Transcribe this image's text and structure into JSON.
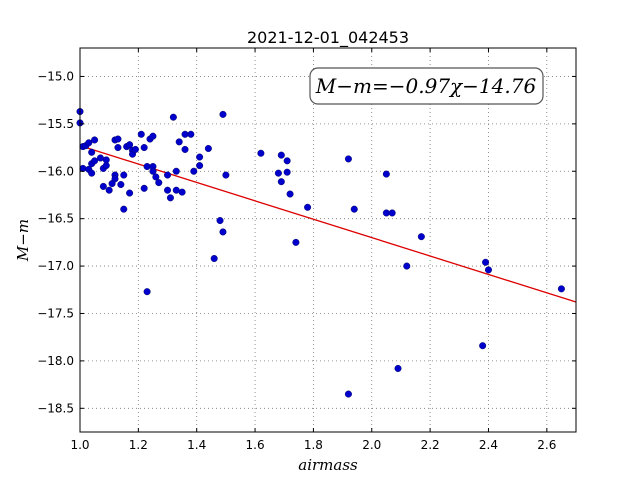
{
  "chart_data": {
    "type": "scatter",
    "title": "2021-12-01_042453",
    "xlabel": "airmass",
    "ylabel": "M−m",
    "xlim": [
      1.0,
      2.7
    ],
    "ylim": [
      -18.75,
      -14.7
    ],
    "y_inverted": true,
    "grid": true,
    "x_ticks": [
      "1.0",
      "1.2",
      "1.4",
      "1.6",
      "1.8",
      "2.0",
      "2.2",
      "2.4",
      "2.6"
    ],
    "x_tick_values": [
      1.0,
      1.2,
      1.4,
      1.6,
      1.8,
      2.0,
      2.2,
      2.4,
      2.6
    ],
    "y_ticks": [
      "−15.0",
      "−15.5",
      "−16.0",
      "−16.5",
      "−17.0",
      "−17.5",
      "−18.0",
      "−18.5"
    ],
    "y_tick_values": [
      -15.0,
      -15.5,
      -16.0,
      -16.5,
      -17.0,
      -17.5,
      -18.0,
      -18.5
    ],
    "marker_color": "#0000cc",
    "fit_color": "#dd0000",
    "annotation": "M−m=−0.97χ−14.76",
    "fit": {
      "slope": -0.97,
      "intercept": -14.76,
      "x_range": [
        1.02,
        2.7
      ]
    },
    "points": [
      [
        1.0,
        -15.37
      ],
      [
        1.0,
        -15.49
      ],
      [
        1.01,
        -15.74
      ],
      [
        1.01,
        -15.97
      ],
      [
        1.02,
        -15.73
      ],
      [
        1.03,
        -15.98
      ],
      [
        1.03,
        -15.7
      ],
      [
        1.04,
        -15.8
      ],
      [
        1.04,
        -16.02
      ],
      [
        1.04,
        -15.92
      ],
      [
        1.05,
        -15.67
      ],
      [
        1.05,
        -15.89
      ],
      [
        1.07,
        -15.86
      ],
      [
        1.08,
        -15.97
      ],
      [
        1.08,
        -16.16
      ],
      [
        1.09,
        -15.94
      ],
      [
        1.09,
        -15.88
      ],
      [
        1.1,
        -16.2
      ],
      [
        1.11,
        -16.13
      ],
      [
        1.12,
        -16.04
      ],
      [
        1.12,
        -16.08
      ],
      [
        1.12,
        -15.67
      ],
      [
        1.13,
        -15.75
      ],
      [
        1.13,
        -15.66
      ],
      [
        1.14,
        -16.14
      ],
      [
        1.15,
        -16.4
      ],
      [
        1.15,
        -16.04
      ],
      [
        1.16,
        -15.74
      ],
      [
        1.17,
        -16.23
      ],
      [
        1.17,
        -15.72
      ],
      [
        1.18,
        -15.78
      ],
      [
        1.18,
        -15.82
      ],
      [
        1.19,
        -15.77
      ],
      [
        1.21,
        -15.61
      ],
      [
        1.22,
        -16.18
      ],
      [
        1.22,
        -15.75
      ],
      [
        1.23,
        -15.95
      ],
      [
        1.23,
        -17.27
      ],
      [
        1.24,
        -15.66
      ],
      [
        1.25,
        -15.63
      ],
      [
        1.25,
        -15.95
      ],
      [
        1.25,
        -16.0
      ],
      [
        1.26,
        -16.06
      ],
      [
        1.27,
        -16.12
      ],
      [
        1.3,
        -16.04
      ],
      [
        1.3,
        -16.2
      ],
      [
        1.31,
        -16.28
      ],
      [
        1.32,
        -15.43
      ],
      [
        1.33,
        -16.0
      ],
      [
        1.33,
        -16.2
      ],
      [
        1.34,
        -15.69
      ],
      [
        1.35,
        -16.22
      ],
      [
        1.36,
        -15.77
      ],
      [
        1.36,
        -15.61
      ],
      [
        1.38,
        -15.61
      ],
      [
        1.39,
        -16.0
      ],
      [
        1.41,
        -15.94
      ],
      [
        1.41,
        -15.85
      ],
      [
        1.44,
        -15.76
      ],
      [
        1.46,
        -16.92
      ],
      [
        1.48,
        -16.52
      ],
      [
        1.49,
        -16.64
      ],
      [
        1.49,
        -15.4
      ],
      [
        1.5,
        -16.04
      ],
      [
        1.62,
        -15.81
      ],
      [
        1.68,
        -16.02
      ],
      [
        1.69,
        -16.11
      ],
      [
        1.69,
        -15.83
      ],
      [
        1.71,
        -16.01
      ],
      [
        1.71,
        -15.89
      ],
      [
        1.72,
        -16.24
      ],
      [
        1.74,
        -16.75
      ],
      [
        1.78,
        -16.38
      ],
      [
        1.92,
        -18.35
      ],
      [
        1.92,
        -15.87
      ],
      [
        1.94,
        -16.4
      ],
      [
        2.05,
        -16.03
      ],
      [
        2.05,
        -16.44
      ],
      [
        2.07,
        -16.44
      ],
      [
        2.09,
        -18.08
      ],
      [
        2.12,
        -17.0
      ],
      [
        2.17,
        -16.69
      ],
      [
        2.38,
        -17.84
      ],
      [
        2.39,
        -16.96
      ],
      [
        2.4,
        -17.04
      ],
      [
        2.65,
        -17.24
      ]
    ]
  }
}
